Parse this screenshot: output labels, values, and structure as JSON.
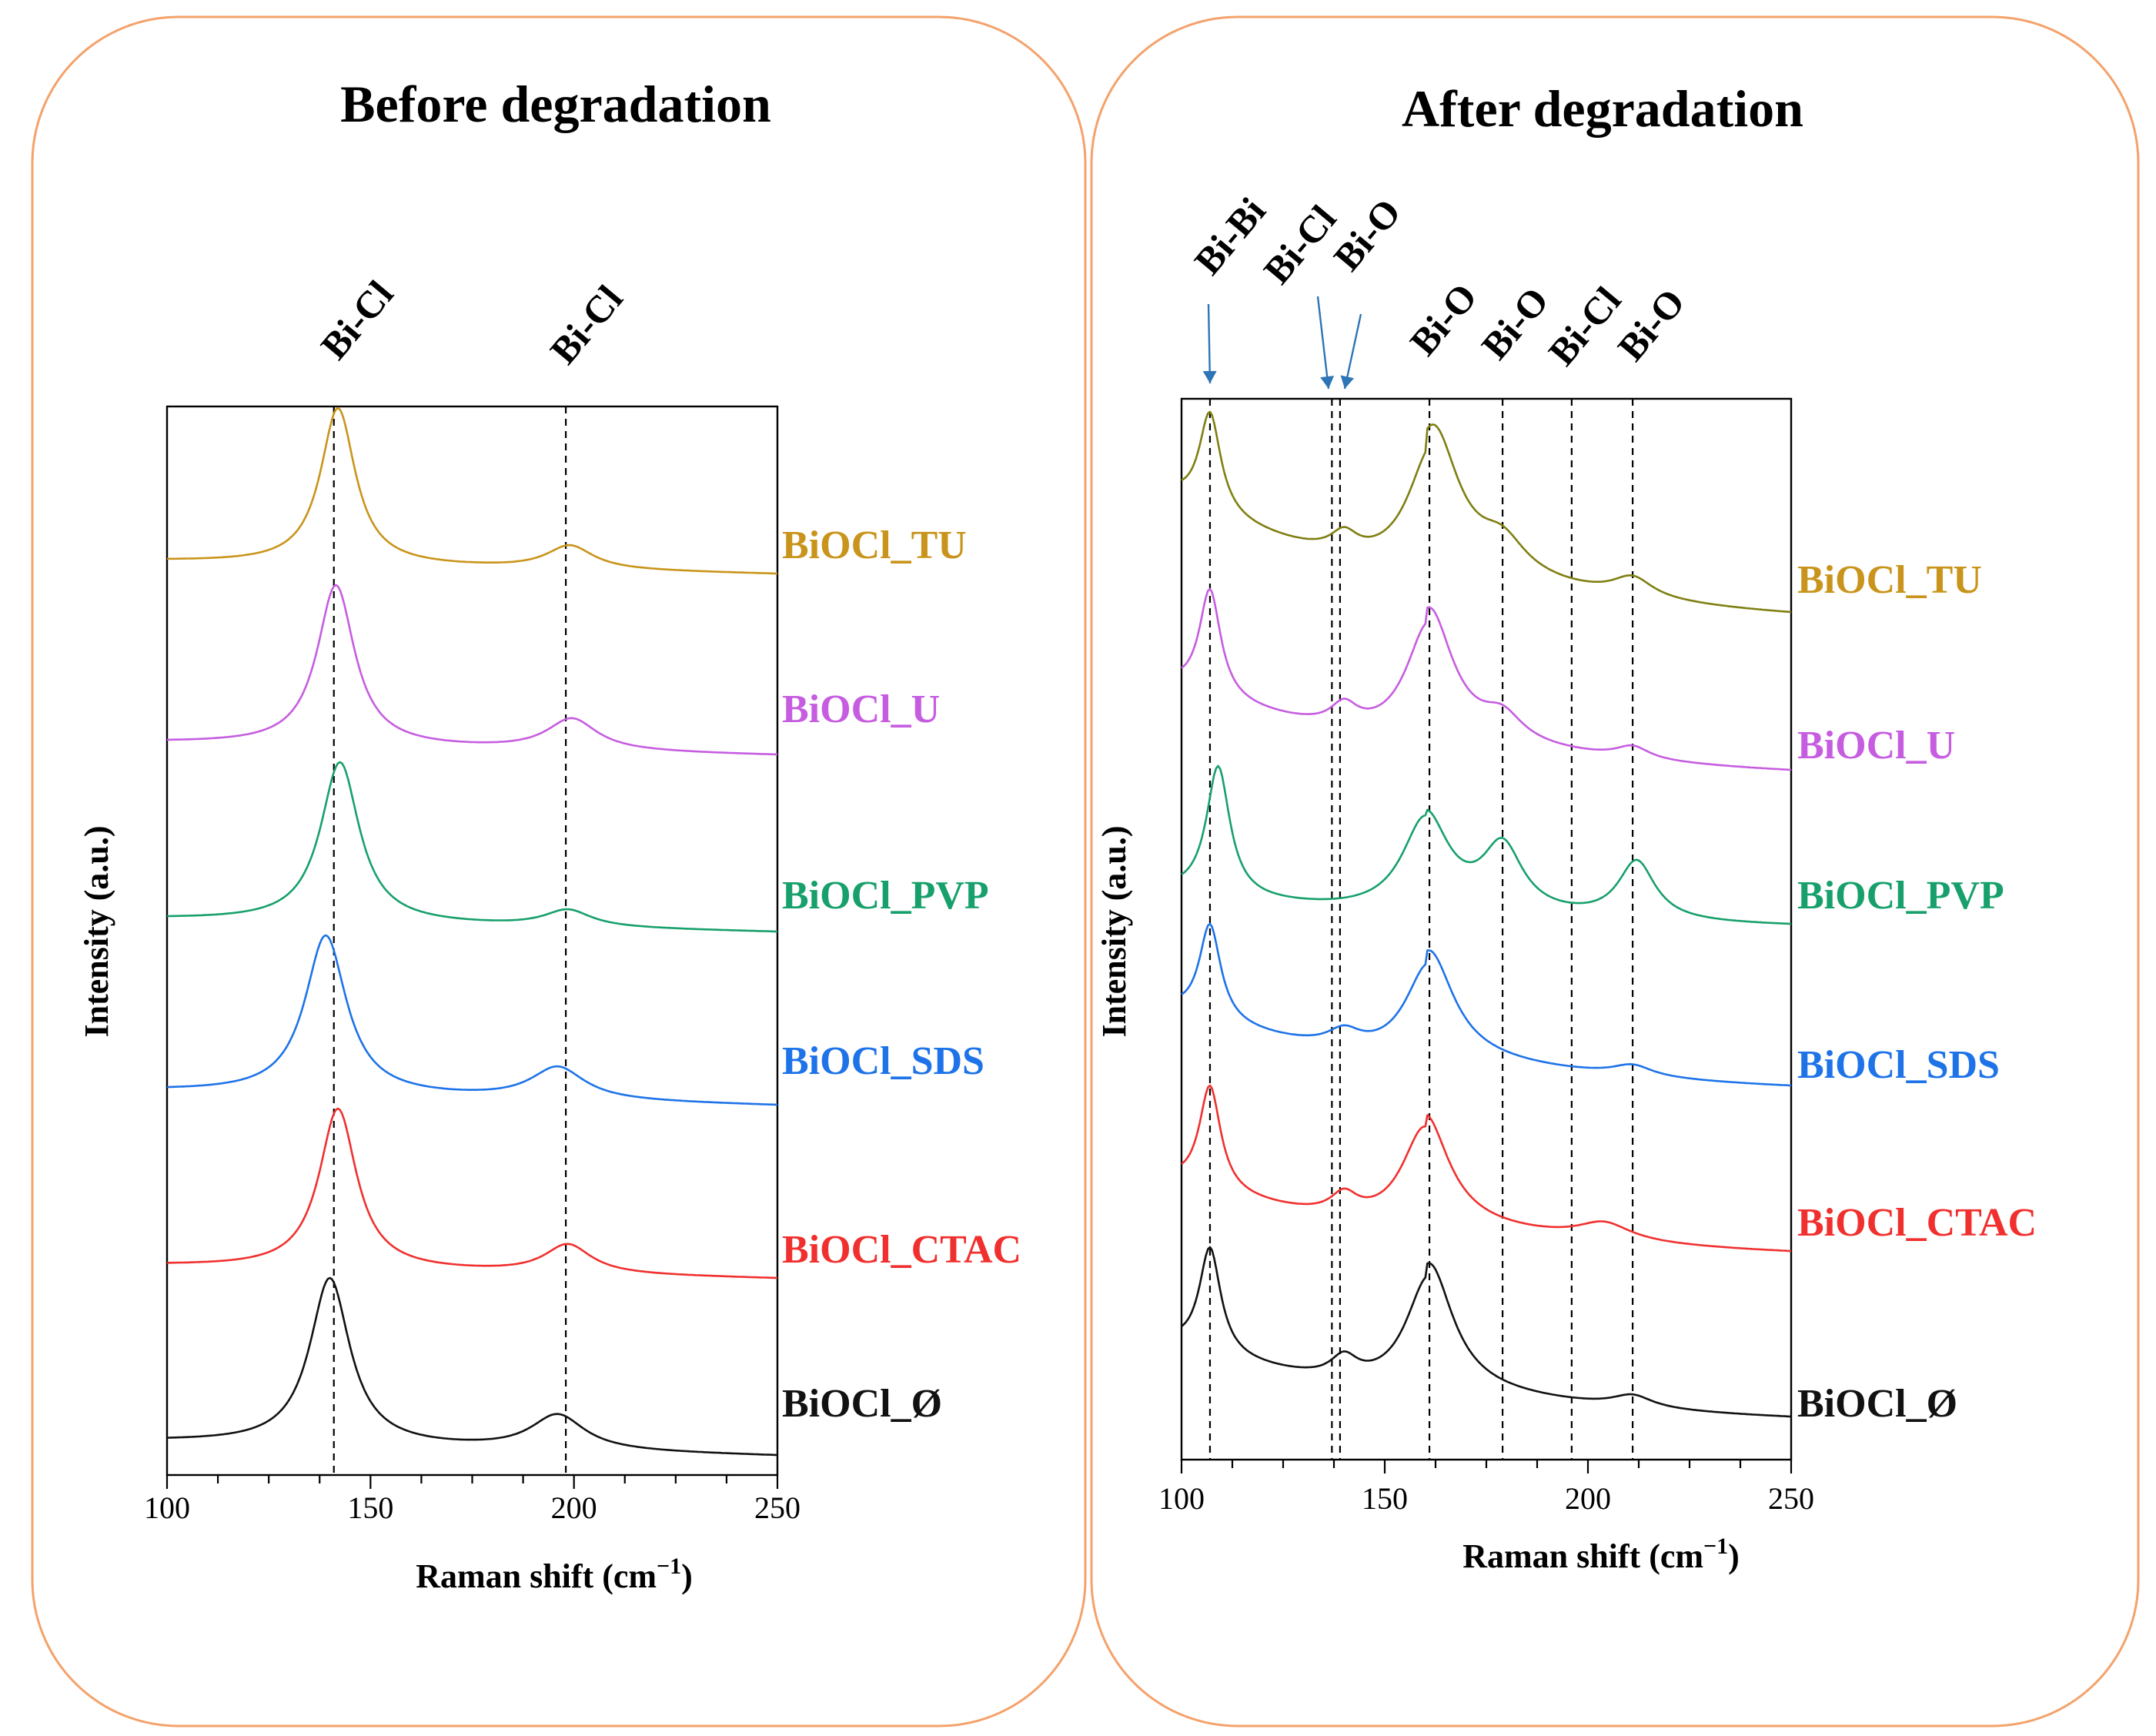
{
  "colors": {
    "panel_border": "#F4A26B",
    "arrow": "#2E75B6",
    "BiOCl_TU": "#C9941B",
    "BiOCl_U": "#C65DE0",
    "BiOCl_PVP": "#17A06B",
    "BiOCl_SDS": "#1E73E8",
    "BiOCl_CTAC": "#F0302E",
    "BiOCl_Ø": "#111111",
    "after_TU_curve": "#7F7F12"
  },
  "chart_data": [
    {
      "type": "line",
      "title": "Before degradation",
      "xlabel": "Raman shift (cm",
      "xlabel_sup": "−1",
      "xlabel_close": ")",
      "ylabel": "Intensity (a.u.)",
      "xlim": [
        100,
        250
      ],
      "xticks": [
        "100",
        "150",
        "200",
        "250"
      ],
      "peak_lines": [
        {
          "x": 141,
          "label": "Bi-Cl"
        },
        {
          "x": 198,
          "label": "Bi-Cl"
        }
      ],
      "series": [
        {
          "name": "BiOCl_TU",
          "color_key": "BiOCl_TU",
          "baseline": 0.85,
          "peaks": [
            [
              142,
              3.0,
              5.2
            ],
            [
              199,
              0.45,
              7
            ]
          ],
          "shoulder": 0.25
        },
        {
          "name": "BiOCl_U",
          "color_key": "BiOCl_U",
          "baseline": 0.85,
          "peaks": [
            [
              141.5,
              3.15,
              5.6
            ],
            [
              199.5,
              0.62,
              7.5
            ]
          ],
          "shoulder": 0.25
        },
        {
          "name": "BiOCl_PVP",
          "color_key": "BiOCl_PVP",
          "baseline": 0.85,
          "peaks": [
            [
              142.5,
              3.05,
              5.8
            ],
            [
              198.5,
              0.32,
              7
            ]
          ],
          "shoulder": 0.35
        },
        {
          "name": "BiOCl_SDS",
          "color_key": "BiOCl_SDS",
          "baseline": 0.85,
          "peaks": [
            [
              139,
              2.7,
              6.2
            ],
            [
              196,
              0.55,
              8
            ]
          ],
          "shoulder": 0.3
        },
        {
          "name": "BiOCl_CTAC",
          "color_key": "BiOCl_CTAC",
          "baseline": 0.85,
          "peaks": [
            [
              142,
              3.05,
              5.6
            ],
            [
              198.5,
              0.55,
              7
            ]
          ],
          "shoulder": 0.3
        },
        {
          "name": "BiOCl_Ø",
          "color_key": "BiOCl_Ø",
          "baseline": 0.85,
          "peaks": [
            [
              140,
              2.85,
              6.0
            ],
            [
              196,
              0.6,
              8
            ]
          ],
          "shoulder": 0.25
        }
      ]
    },
    {
      "type": "line",
      "title": "After degradation",
      "xlabel": "Raman shift (cm",
      "xlabel_sup": "−1",
      "xlabel_close": ")",
      "ylabel": "Intensity (a.u.)",
      "xlim": [
        100,
        250
      ],
      "xticks": [
        "100",
        "150",
        "200",
        "250"
      ],
      "peak_lines": [
        {
          "x": 107,
          "label": "Bi-Bi"
        },
        {
          "x": 137,
          "label": "Bi-Cl"
        },
        {
          "x": 139,
          "label": "Bi-O"
        },
        {
          "x": 161,
          "label": "Bi-O"
        },
        {
          "x": 179,
          "label": "Bi-O"
        },
        {
          "x": 196,
          "label": "Bi-Cl"
        },
        {
          "x": 211,
          "label": "Bi-O"
        }
      ],
      "series": [
        {
          "name": "BiOCl_TU",
          "color_key": "BiOCl_TU",
          "curve_color_key": "after_TU_curve",
          "peaks": [
            [
              107,
              1.75,
              3.2
            ],
            [
              140,
              0.35,
              4
            ],
            [
              162,
              2.35,
              7.5
            ],
            [
              179,
              0.55,
              7
            ],
            [
              211,
              0.35,
              6
            ]
          ],
          "tail": 1.2,
          "start": 1.0
        },
        {
          "name": "BiOCl_U",
          "color_key": "BiOCl_U",
          "peaks": [
            [
              107,
              1.75,
              3.2
            ],
            [
              140,
              0.35,
              4
            ],
            [
              161,
              2.0,
              7.0
            ],
            [
              179,
              0.4,
              6
            ],
            [
              211,
              0.2,
              5
            ]
          ],
          "tail": 0.8,
          "start": 1.0
        },
        {
          "name": "BiOCl_PVP",
          "color_key": "BiOCl_PVP",
          "peaks": [
            [
              109,
              2.0,
              3.5
            ],
            [
              160,
              1.45,
              7.0
            ],
            [
              179,
              1.0,
              6.0
            ],
            [
              212,
              0.9,
              5.5
            ]
          ],
          "tail": 0.3,
          "start": 0.25
        },
        {
          "name": "BiOCl_SDS",
          "color_key": "BiOCl_SDS",
          "peaks": [
            [
              107,
              1.75,
              3.2
            ],
            [
              140,
              0.3,
              5
            ],
            [
              161,
              1.85,
              7.2
            ],
            [
              211,
              0.2,
              6
            ]
          ],
          "tail": 0.8,
          "start": 0.9
        },
        {
          "name": "BiOCl_CTAC",
          "color_key": "BiOCl_CTAC",
          "peaks": [
            [
              107,
              1.8,
              3.2
            ],
            [
              140,
              0.35,
              4
            ],
            [
              160,
              1.8,
              7.0
            ],
            [
              204,
              0.3,
              8
            ]
          ],
          "tail": 0.7,
          "start": 1.0
        },
        {
          "name": "BiOCl_Ø",
          "color_key": "BiOCl_Ø",
          "peaks": [
            [
              107,
              1.75,
              3.2
            ],
            [
              140,
              0.35,
              4
            ],
            [
              161,
              2.0,
              7.0
            ],
            [
              211,
              0.2,
              6
            ]
          ],
          "tail": 0.7,
          "start": 1.0
        }
      ]
    }
  ]
}
